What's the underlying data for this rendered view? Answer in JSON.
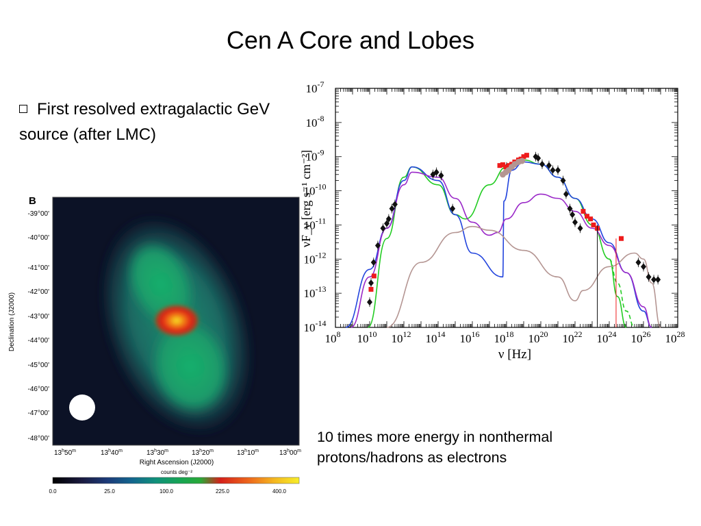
{
  "slide": {
    "title": "Cen A Core and Lobes",
    "bullet": "First resolved extragalactic GeV source (after LMC)",
    "caption": "10 times more energy in nonthermal protons/hadrons as electrons"
  },
  "map_panel": {
    "panel_label": "B",
    "ylabel": "Declination (J2000)",
    "xlabel": "Right Ascension (J2000)",
    "dec_ticks": [
      "-39°00'",
      "-40°00'",
      "-41°00'",
      "-42°00'",
      "-43°00'",
      "-44°00'",
      "-45°00'",
      "-46°00'",
      "-47°00'",
      "-48°00'"
    ],
    "ra_ticks": [
      {
        "h": "13",
        "m": "50"
      },
      {
        "h": "13",
        "m": "40"
      },
      {
        "h": "13",
        "m": "30"
      },
      {
        "h": "13",
        "m": "20"
      },
      {
        "h": "13",
        "m": "10"
      },
      {
        "h": "13",
        "m": "00"
      }
    ],
    "colorbar_label": "counts deg⁻²",
    "colorbar_ticks": [
      "0.0",
      "25.0",
      "100.0",
      "225.0",
      "400.0"
    ],
    "colors": {
      "background": "#0c1226",
      "outer": "#1e7a6a",
      "lobe": "#18a66a",
      "core_red": "#e32515",
      "core_yellow": "#f4e820"
    }
  },
  "chart_data": {
    "type": "scatter",
    "title": "",
    "xlabel": "ν [Hz]",
    "ylabel": "νF_ν [erg s⁻¹ cm⁻²]",
    "x_scale": "log",
    "y_scale": "log",
    "xlim": [
      100000000.0,
      1e+28
    ],
    "ylim": [
      1e-14,
      1e-07
    ],
    "x_tick_exponents": [
      "8",
      "10",
      "12",
      "14",
      "16",
      "18",
      "20",
      "22",
      "24",
      "26",
      "28"
    ],
    "y_tick_exponents": [
      "-7",
      "-8",
      "-9",
      "-10",
      "-11",
      "-12",
      "-13",
      "-14"
    ],
    "grid": false,
    "series": [
      {
        "color": "#111111",
        "marker": "diamond",
        "points": [
          [
            10000000000.0,
            5.5e-14
          ],
          [
            12000000000.0,
            2e-13
          ],
          [
            17000000000.0,
            8e-13
          ],
          [
            30000000000.0,
            2.5e-12
          ],
          [
            60000000000.0,
            8e-12
          ],
          [
            100000000000.0,
            1.1e-11
          ],
          [
            130000000000.0,
            1.5e-11
          ],
          [
            200000000000.0,
            3e-11
          ],
          [
            300000000000.0,
            4e-11
          ],
          [
            50000000000000.0,
            3e-10
          ],
          [
            80000000000000.0,
            3.5e-10
          ],
          [
            150000000000000.0,
            2.8e-10
          ],
          [
            700000000000000.0,
            3e-11
          ],
          [
            1e+18,
            5e-10
          ],
          [
            5e+19,
            1e-09
          ],
          [
            7e+19,
            9e-10
          ],
          [
            1.2e+20,
            6e-10
          ],
          [
            3e+20,
            5.5e-10
          ],
          [
            5e+20,
            4e-10
          ],
          [
            1e+21,
            4e-10
          ],
          [
            2e+21,
            2e-10
          ],
          [
            3e+21,
            8e-11
          ],
          [
            5e+21,
            3e-11
          ],
          [
            7e+21,
            2e-11
          ],
          [
            1e+22,
            1.2e-11
          ],
          [
            2e+22,
            8e-12
          ],
          [
            5e+25,
            8e-13
          ],
          [
            1e+26,
            6e-13
          ],
          [
            2e+26,
            3e-13
          ],
          [
            4e+26,
            2.5e-13
          ],
          [
            7e+26,
            2.5e-13
          ]
        ]
      },
      {
        "color": "#ee1c1c",
        "marker": "square",
        "points": [
          [
            12000000000.0,
            1.3e-13
          ],
          [
            18000000000.0,
            3.2e-13
          ],
          [
            4e+17,
            5.5e-10
          ],
          [
            6e+17,
            5.8e-10
          ],
          [
            9e+17,
            5e-10
          ],
          [
            1.4e+18,
            5.5e-10
          ],
          [
            2e+18,
            6e-10
          ],
          [
            3e+18,
            7e-10
          ],
          [
            5e+18,
            8e-10
          ],
          [
            7e+18,
            8.5e-10
          ],
          [
            1e+19,
            1e-09
          ],
          [
            1.5e+19,
            1.1e-09
          ],
          [
            3e+22,
            2.5e-11
          ],
          [
            5e+22,
            1.8e-11
          ],
          [
            8e+22,
            1.5e-11
          ],
          [
            1.2e+23,
            1e-11
          ],
          [
            2e+23,
            8e-12
          ],
          [
            5e+24,
            4e-12
          ]
        ]
      },
      {
        "color": "#b49592",
        "marker": "circle",
        "points": [
          [
            6e+17,
            3e-10
          ],
          [
            9e+17,
            3.5e-10
          ],
          [
            1.3e+18,
            4e-10
          ],
          [
            2e+18,
            5e-10
          ],
          [
            3e+18,
            6e-10
          ],
          [
            5e+18,
            7e-10
          ],
          [
            8e+18,
            7.5e-10
          ]
        ]
      }
    ],
    "model_curves": [
      {
        "color": "#22cc22",
        "style": "solid"
      },
      {
        "color": "#22cc22",
        "style": "dashed"
      },
      {
        "color": "#2244dd",
        "style": "solid"
      },
      {
        "color": "#9a28c8",
        "style": "solid"
      },
      {
        "color": "#b49592",
        "style": "solid"
      }
    ]
  }
}
